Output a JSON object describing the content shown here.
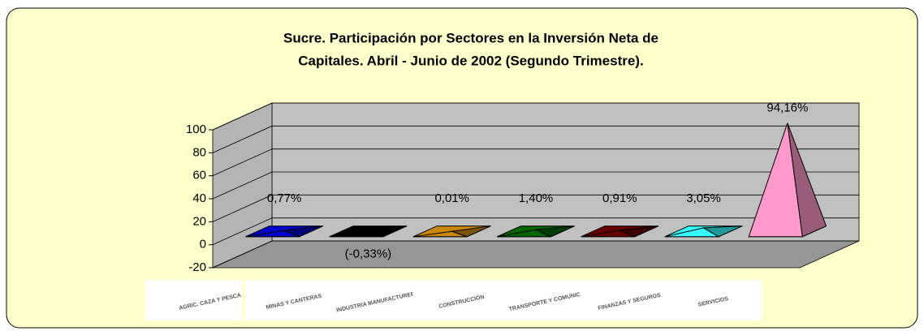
{
  "chart_data": {
    "type": "pyramid3d",
    "title": [
      "Sucre. Participación por Sectores en la Inversión Neta de",
      "Capitales. Abril - Junio de 2002 (Segundo Trimestre)."
    ],
    "categories": [
      "AGRIC. CAZA Y PESCA",
      "MINAS Y CANTERAS",
      "INDUSTRIA MANUFACTURERA",
      "CONSTRUCCIÓN",
      "TRANSPORTE Y COMUNIC.",
      "FINANZAS Y SEGUROS",
      "SERVICIOS"
    ],
    "values": [
      0.77,
      -0.33,
      0.01,
      1.4,
      0.91,
      3.05,
      94.16
    ],
    "value_labels": [
      "0,77%",
      "(-0,33%)",
      "0,01%",
      "1,40%",
      "0,91%",
      "3,05%",
      "94,16%"
    ],
    "colors": [
      "#0000cc",
      "#000000",
      "#cc8800",
      "#006600",
      "#660000",
      "#33ffff",
      "#ff99cc"
    ],
    "ylim": [
      -20,
      100
    ],
    "yticks": [
      -20,
      0,
      20,
      40,
      60,
      80,
      100
    ],
    "grid": true
  }
}
